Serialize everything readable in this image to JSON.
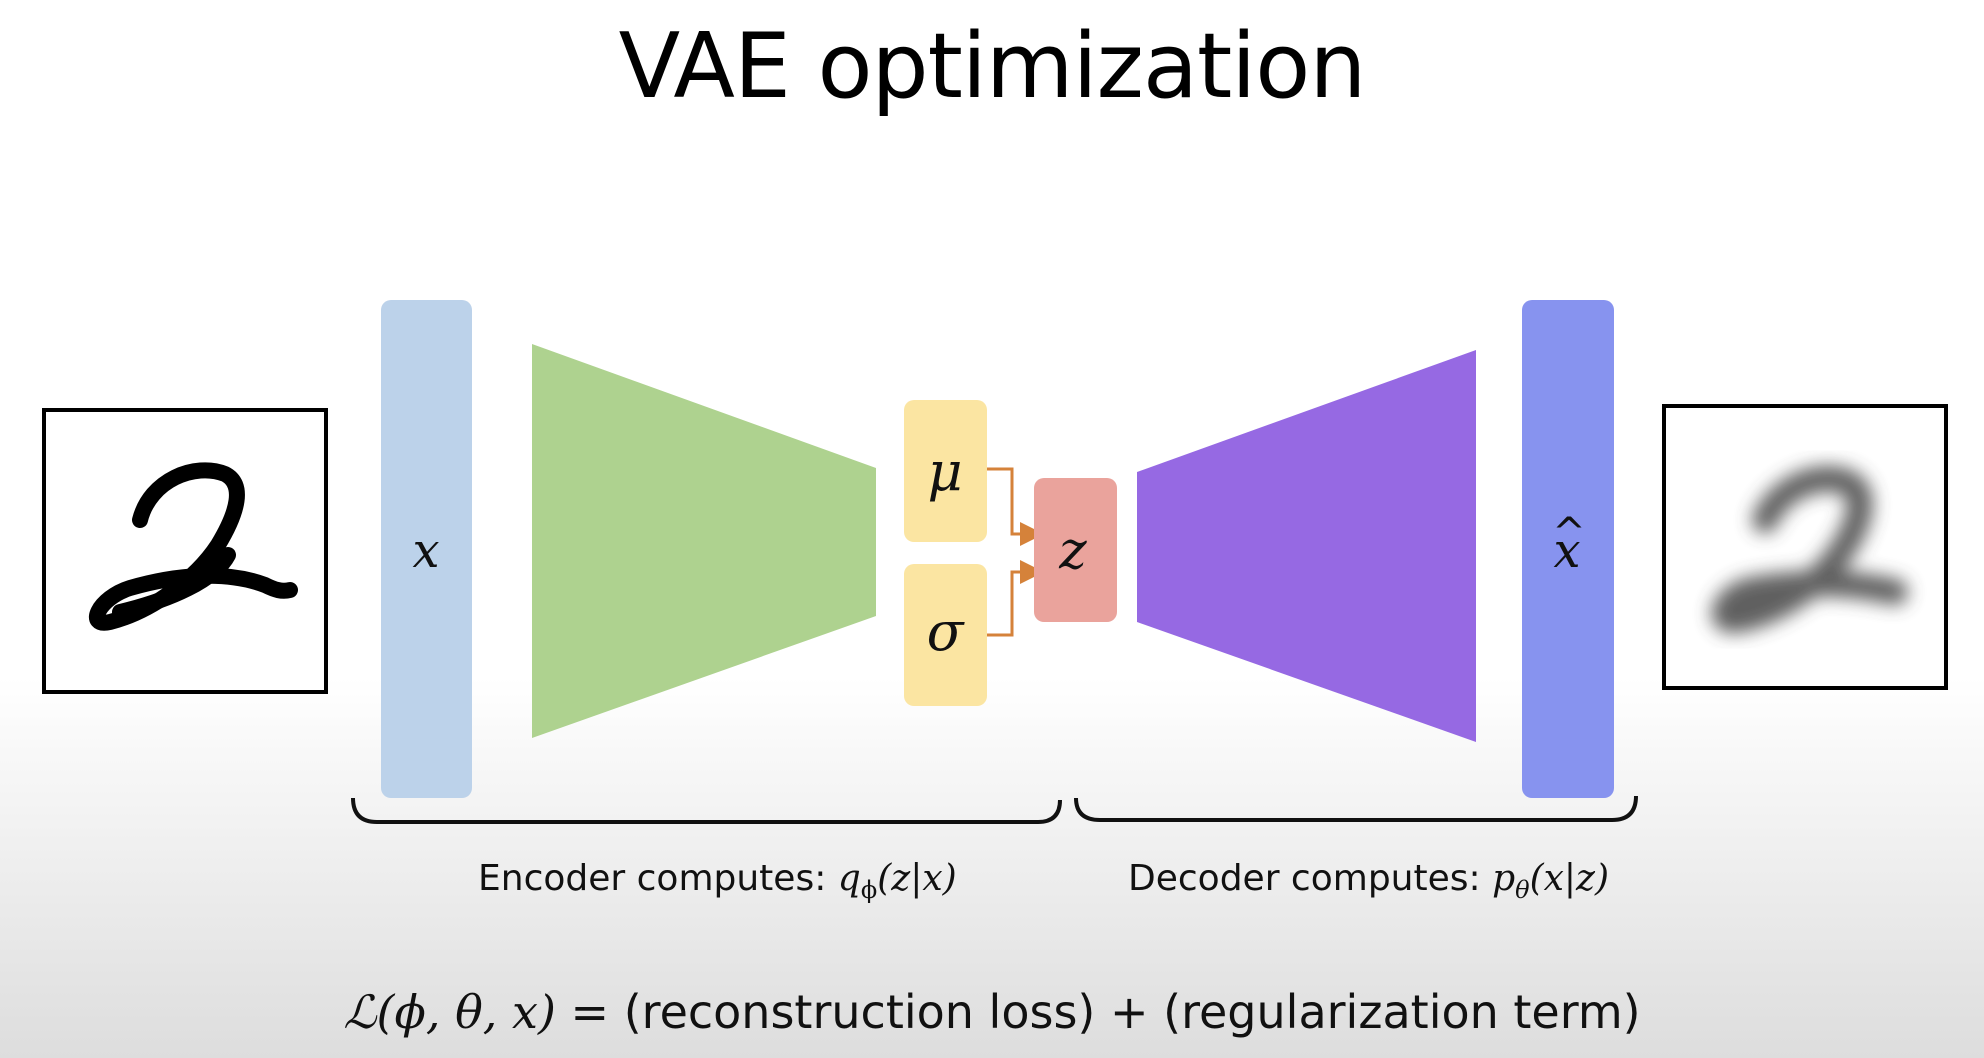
{
  "title": "VAE optimization",
  "labels": {
    "input": "x",
    "mu": "μ",
    "sigma": "σ",
    "latent": "z",
    "output_hat": "^",
    "output_base": "x"
  },
  "encoder_caption": {
    "text": "Encoder computes: ",
    "formula_q": "q",
    "formula_sub": "ϕ",
    "formula_args": "(z|x)"
  },
  "decoder_caption": {
    "text": "Decoder computes: ",
    "formula_p": "p",
    "formula_sub": "θ",
    "formula_args": "(x|z)"
  },
  "loss": {
    "lhs_script": "ℒ",
    "lhs_args": "(ϕ, θ, x)",
    "equals": " = ",
    "term1": "(reconstruction loss)",
    "plus": " + ",
    "term2": "(regularization term)"
  },
  "colors": {
    "input_bar": "#bcd2ea",
    "encoder": "#aed28f",
    "mu_sigma": "#fbe5a2",
    "latent": "#eaa39c",
    "decoder": "#9669e3",
    "output_bar": "#8793ef",
    "arrow": "#d5823a"
  },
  "icons": {
    "input_image": "handwritten-digit-2",
    "output_image": "blurred-digit-2"
  }
}
